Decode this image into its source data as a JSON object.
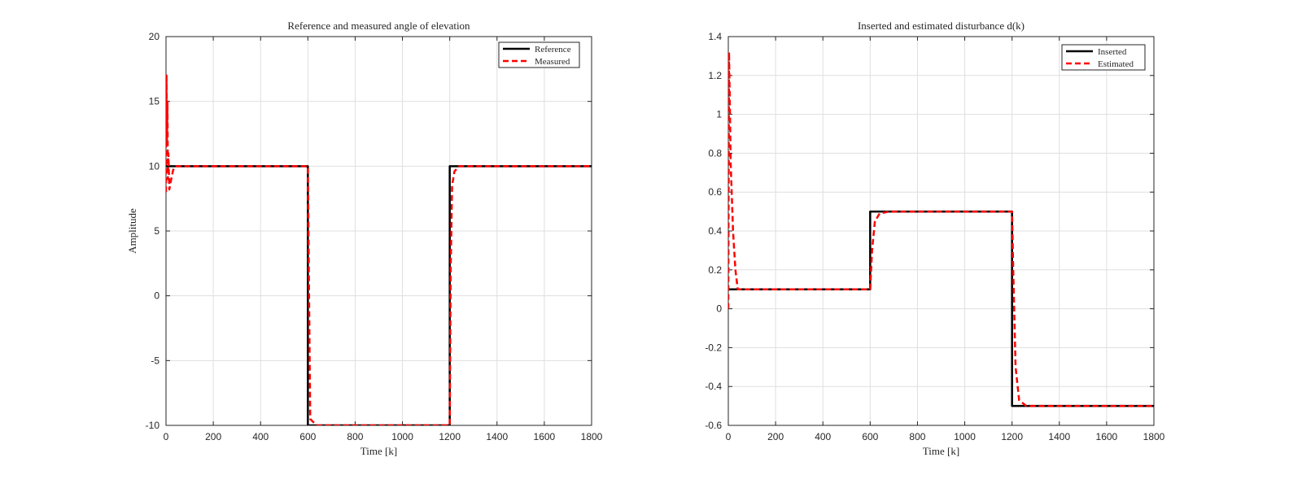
{
  "chart_data": [
    {
      "type": "line",
      "title": "Reference and measured angle of elevation",
      "xlabel": "Time [k]",
      "ylabel": "Amplitude",
      "xlim": [
        0,
        1800
      ],
      "ylim": [
        -10,
        20
      ],
      "xticks": [
        0,
        200,
        400,
        600,
        800,
        1000,
        1200,
        1400,
        1600,
        1800
      ],
      "yticks": [
        -10,
        -5,
        0,
        5,
        10,
        15,
        20
      ],
      "grid": true,
      "legend_position": "top-right",
      "series": [
        {
          "name": "Reference",
          "color": "#000000",
          "style": "solid",
          "x": [
            0,
            600,
            600,
            1200,
            1200,
            1800
          ],
          "y": [
            10,
            10,
            -10,
            -10,
            10,
            10
          ]
        },
        {
          "name": "Measured",
          "color": "#ff0000",
          "style": "dashed",
          "x": [
            0,
            2,
            4,
            6,
            8,
            10,
            14,
            20,
            30,
            40,
            600,
            604,
            610,
            620,
            640,
            1200,
            1204,
            1210,
            1220,
            1240,
            1800
          ],
          "y": [
            8,
            17,
            12,
            15,
            9,
            11,
            8.2,
            8.8,
            9.7,
            10,
            10,
            2,
            -9.5,
            -9.7,
            -10,
            -10,
            2,
            8.5,
            9.6,
            10,
            10
          ]
        }
      ]
    },
    {
      "type": "line",
      "title": "Inserted and estimated disturbance d(k)",
      "xlabel": "Time [k]",
      "ylabel": "",
      "xlim": [
        0,
        1800
      ],
      "ylim": [
        -0.6,
        1.4
      ],
      "xticks": [
        0,
        200,
        400,
        600,
        800,
        1000,
        1200,
        1400,
        1600,
        1800
      ],
      "yticks": [
        -0.6,
        -0.4,
        -0.2,
        0,
        0.2,
        0.4,
        0.6,
        0.8,
        1,
        1.2,
        1.4
      ],
      "grid": true,
      "legend_position": "top-right",
      "series": [
        {
          "name": "Inserted",
          "color": "#000000",
          "style": "solid",
          "x": [
            0,
            600,
            600,
            1200,
            1200,
            1800
          ],
          "y": [
            0.1,
            0.1,
            0.5,
            0.5,
            -0.5,
            -0.5
          ]
        },
        {
          "name": "Estimated",
          "color": "#ff0000",
          "style": "dashed",
          "x": [
            0,
            3,
            6,
            10,
            20,
            30,
            40,
            60,
            600,
            608,
            620,
            640,
            680,
            1200,
            1205,
            1215,
            1230,
            1260,
            1800
          ],
          "y": [
            0,
            1.32,
            1.1,
            0.75,
            0.4,
            0.2,
            0.1,
            0.1,
            0.1,
            0.3,
            0.45,
            0.49,
            0.5,
            0.5,
            0.2,
            -0.3,
            -0.47,
            -0.5,
            -0.5
          ]
        }
      ]
    }
  ]
}
